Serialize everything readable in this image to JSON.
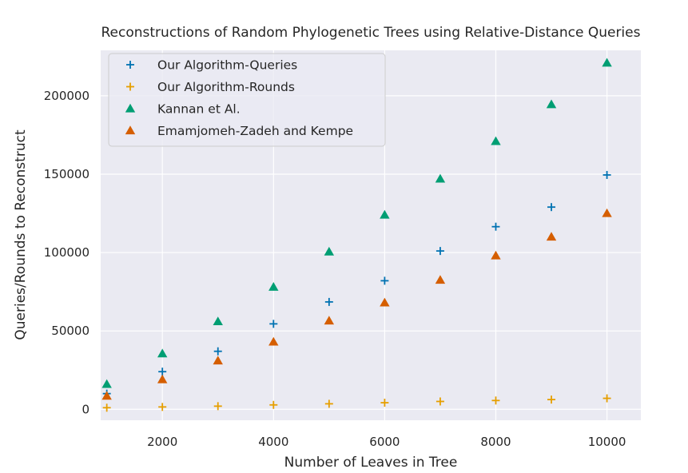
{
  "chart_data": {
    "type": "scatter",
    "title": "Reconstructions of Random Phylogenetic Trees using Relative-Distance Queries",
    "xlabel": "Number of Leaves in Tree",
    "ylabel": "Queries/Rounds to Reconstruct",
    "xlim": [
      890,
      10610
    ],
    "ylim": [
      -7000,
      229000
    ],
    "xticks": [
      2000,
      4000,
      6000,
      8000,
      10000
    ],
    "yticks": [
      0,
      50000,
      100000,
      150000,
      200000
    ],
    "grid": true,
    "legend_position": "top-left",
    "x": [
      1000,
      2000,
      3000,
      4000,
      5000,
      6000,
      7000,
      8000,
      9000,
      10000
    ],
    "series": [
      {
        "name": "Our Algorithm-Queries",
        "marker": "plus",
        "color": "#0072b2",
        "values": [
          10000,
          24000,
          37000,
          54500,
          68500,
          82000,
          101000,
          116500,
          129000,
          149500
        ]
      },
      {
        "name": "Our Algorithm-Rounds",
        "marker": "plus",
        "color": "#e69f00",
        "values": [
          1000,
          1500,
          2000,
          2800,
          3500,
          4200,
          5000,
          5600,
          6200,
          7000
        ]
      },
      {
        "name": "Kannan et Al.",
        "marker": "triangle",
        "color": "#009e73",
        "values": [
          16000,
          35500,
          56000,
          78000,
          100500,
          124000,
          147000,
          171000,
          194500,
          221000
        ]
      },
      {
        "name": "Emamjomeh-Zadeh and Kempe",
        "marker": "triangle",
        "color": "#d55e00",
        "values": [
          8500,
          19000,
          31000,
          43000,
          56500,
          68000,
          82500,
          98000,
          110000,
          125000
        ]
      }
    ]
  }
}
